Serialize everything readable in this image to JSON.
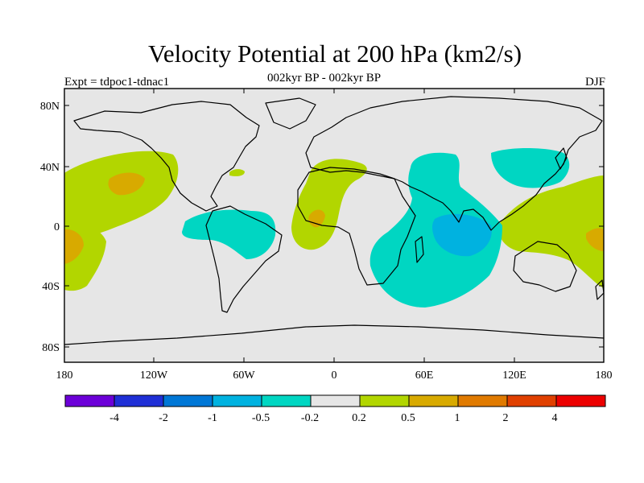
{
  "title": "Velocity Potential at 200 hPa (km2/s)",
  "subtitle": "002kyr BP - 002kyr BP",
  "experiment": "Expt = tdpoc1-tdnac1",
  "season": "DJF",
  "lat_labels": [
    "80N",
    "40N",
    "0",
    "40S",
    "80S"
  ],
  "lon_labels": [
    "180",
    "120W",
    "60W",
    "0",
    "60E",
    "120E",
    "180"
  ],
  "colorbar": {
    "colors": [
      "#6c00d8",
      "#1f2fd6",
      "#0077d6",
      "#00b2e0",
      "#00d6c2",
      "#e6e6e6",
      "#b2d600",
      "#d8aa00",
      "#e07a00",
      "#e04000",
      "#ec0000"
    ],
    "labels": [
      "-4",
      "-2",
      "-1",
      "-0.5",
      "-0.2",
      "0.2",
      "0.5",
      "1",
      "2",
      "4"
    ]
  },
  "field_colors": {
    "background": "#e6e6e6",
    "positive_0_2": "#b2d600",
    "positive_0_5": "#d8aa00",
    "negative_0_2": "#00d6c2",
    "negative_0_5": "#00b2e0"
  }
}
